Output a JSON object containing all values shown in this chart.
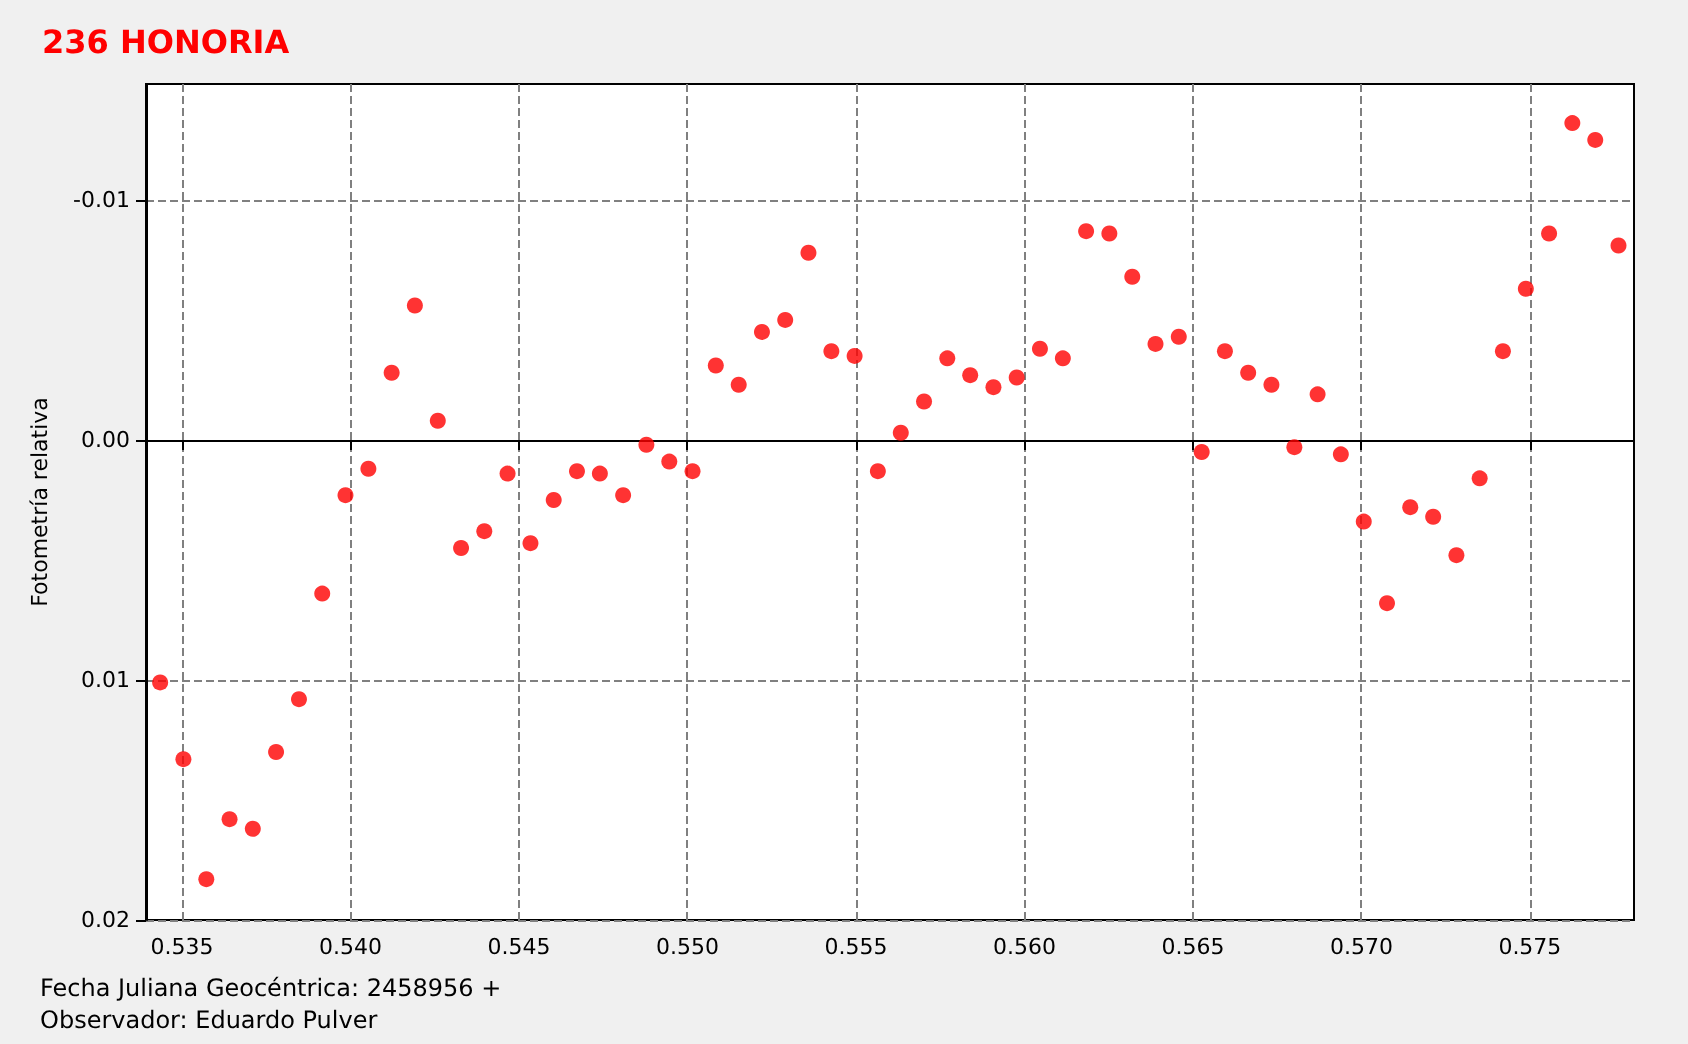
{
  "chart_data": {
    "type": "scatter",
    "title": "236 HONORIA",
    "xlabel": "Fecha Juliana Geocéntrica: 2458956 +",
    "ylabel": "Fotometría relativa",
    "annotations": [
      "Observador: Eduardo Pulver"
    ],
    "x": [
      0.53435,
      0.53504,
      0.53572,
      0.53641,
      0.5371,
      0.53779,
      0.53847,
      0.53916,
      0.53985,
      0.54053,
      0.54122,
      0.54191,
      0.54259,
      0.54328,
      0.54397,
      0.54466,
      0.54534,
      0.54603,
      0.54672,
      0.5474,
      0.54809,
      0.54878,
      0.54946,
      0.55015,
      0.55084,
      0.55152,
      0.55221,
      0.5529,
      0.55359,
      0.55427,
      0.55496,
      0.55565,
      0.55633,
      0.55702,
      0.55771,
      0.55839,
      0.55908,
      0.55977,
      0.56046,
      0.56114,
      0.56183,
      0.56252,
      0.5632,
      0.56389,
      0.56458,
      0.56526,
      0.56595,
      0.56664,
      0.56733,
      0.56801,
      0.5687,
      0.56939,
      0.57007,
      0.57076,
      0.57145,
      0.57213,
      0.57282,
      0.57351,
      0.5742,
      0.57488,
      0.57557,
      0.57626,
      0.57694,
      0.57763
    ],
    "series": [
      {
        "color": "#ff0000",
        "values": [
          0.0101,
          0.0133,
          0.0183,
          0.0158,
          0.0162,
          0.013,
          0.0108,
          0.0064,
          0.0023,
          0.0012,
          -0.0028,
          -0.0056,
          -0.0008,
          0.0045,
          0.0038,
          0.0014,
          0.0043,
          0.0025,
          0.0013,
          0.0014,
          0.0023,
          0.0002,
          0.0009,
          0.0013,
          -0.0031,
          -0.0023,
          -0.0045,
          -0.005,
          -0.0078,
          -0.0037,
          -0.0035,
          0.0013,
          -0.0003,
          -0.0016,
          -0.0034,
          -0.0027,
          -0.0022,
          -0.0026,
          -0.0038,
          -0.0034,
          -0.0087,
          -0.0086,
          -0.0068,
          -0.004,
          -0.0043,
          0.0005,
          -0.0037,
          -0.0028,
          -0.0023,
          0.0003,
          -0.0019,
          0.0006,
          0.0034,
          0.0068,
          0.0028,
          0.0032,
          0.0048,
          0.0016,
          -0.0037,
          -0.0063,
          -0.0086,
          -0.0132,
          -0.0125,
          -0.0081
        ]
      }
    ],
    "xlim": [
      0.53393,
      0.57809
    ],
    "xticks": [
      0.535,
      {
        "value": 0.54,
        "label": "0.540"
      },
      0.545,
      {
        "value": 0.55,
        "label": "0.550"
      },
      0.555,
      {
        "value": 0.56,
        "label": "0.560"
      },
      0.565,
      {
        "value": 0.57,
        "label": "0.570"
      },
      0.575
    ],
    "ylim": [
      0.02,
      -0.01483
    ],
    "yticks": [
      {
        "value": 0.02,
        "label": "0.02"
      },
      {
        "value": 0.01,
        "label": "0.01"
      },
      {
        "value": 0,
        "label": "0.00"
      },
      {
        "value": -0.01,
        "label": "-0.01"
      }
    ],
    "grid": true,
    "marker": "circle"
  }
}
